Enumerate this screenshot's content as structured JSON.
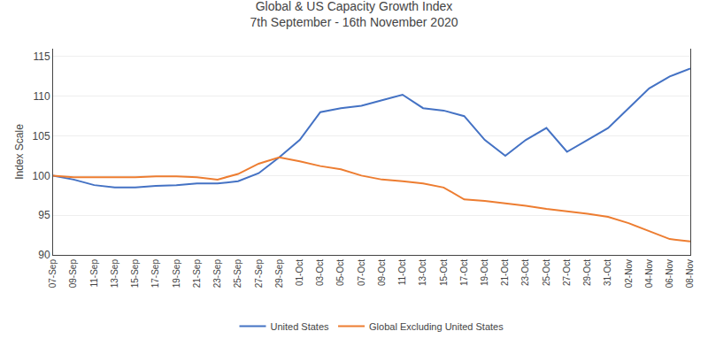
{
  "chart_data": {
    "type": "line",
    "title": "Global & US Capacity Growth Index",
    "subtitle": "7th September - 16th November 2020",
    "y_label": "Index Scale",
    "categories": [
      "07-Sep",
      "09-Sep",
      "11-Sep",
      "13-Sep",
      "15-Sep",
      "17-Sep",
      "19-Sep",
      "21-Sep",
      "23-Sep",
      "25-Sep",
      "27-Sep",
      "29-Sep",
      "01-Oct",
      "03-Oct",
      "05-Oct",
      "07-Oct",
      "09-Oct",
      "11-Oct",
      "13-Oct",
      "15-Oct",
      "17-Oct",
      "19-Oct",
      "21-Oct",
      "23-Oct",
      "25-Oct",
      "27-Oct",
      "29-Oct",
      "31-Oct",
      "02-Nov",
      "04-Nov",
      "06-Nov",
      "08-Nov"
    ],
    "series": [
      {
        "name": "United States",
        "color": "#4472C4",
        "values": [
          100.0,
          99.5,
          98.8,
          98.5,
          98.5,
          98.7,
          98.8,
          99.0,
          99.0,
          99.3,
          100.3,
          102.3,
          104.5,
          108.0,
          108.5,
          108.8,
          109.5,
          110.2,
          108.5,
          108.2,
          107.5,
          104.5,
          102.5,
          104.5,
          106.0,
          103.0,
          104.5,
          106.0,
          108.5,
          111.0,
          112.5,
          113.5
        ]
      },
      {
        "name": "Global Excluding United States",
        "color": "#ED7D31",
        "values": [
          100.0,
          99.8,
          99.8,
          99.8,
          99.8,
          99.9,
          99.9,
          99.8,
          99.5,
          100.2,
          101.5,
          102.3,
          101.8,
          101.2,
          100.8,
          100.0,
          99.5,
          99.3,
          99.0,
          98.5,
          97.0,
          96.8,
          96.5,
          96.2,
          95.8,
          95.5,
          95.2,
          94.8,
          94.0,
          93.0,
          92.0,
          91.7
        ]
      }
    ],
    "ylim": [
      90,
      116
    ],
    "yticks": [
      90,
      95,
      100,
      105,
      110,
      115
    ],
    "grid": true,
    "legend": "bottom"
  }
}
